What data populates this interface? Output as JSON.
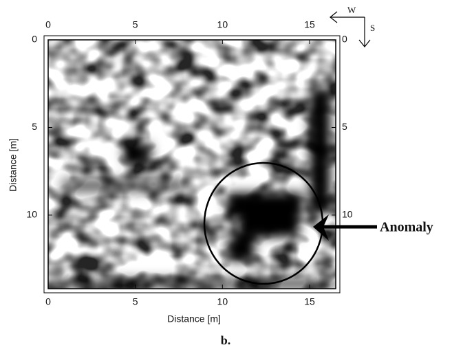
{
  "chart_data": {
    "type": "image-map",
    "xlabel": "Distance [m]",
    "ylabel": "Distance [m]",
    "xlim": [
      0,
      16.5
    ],
    "ylim": [
      0,
      14.2
    ],
    "xticks": [
      0,
      5,
      10,
      15
    ],
    "yticks": [
      0,
      5,
      10
    ],
    "annotation": "Anomaly",
    "caption": "b.",
    "compass": {
      "west": "W",
      "south": "S"
    }
  }
}
